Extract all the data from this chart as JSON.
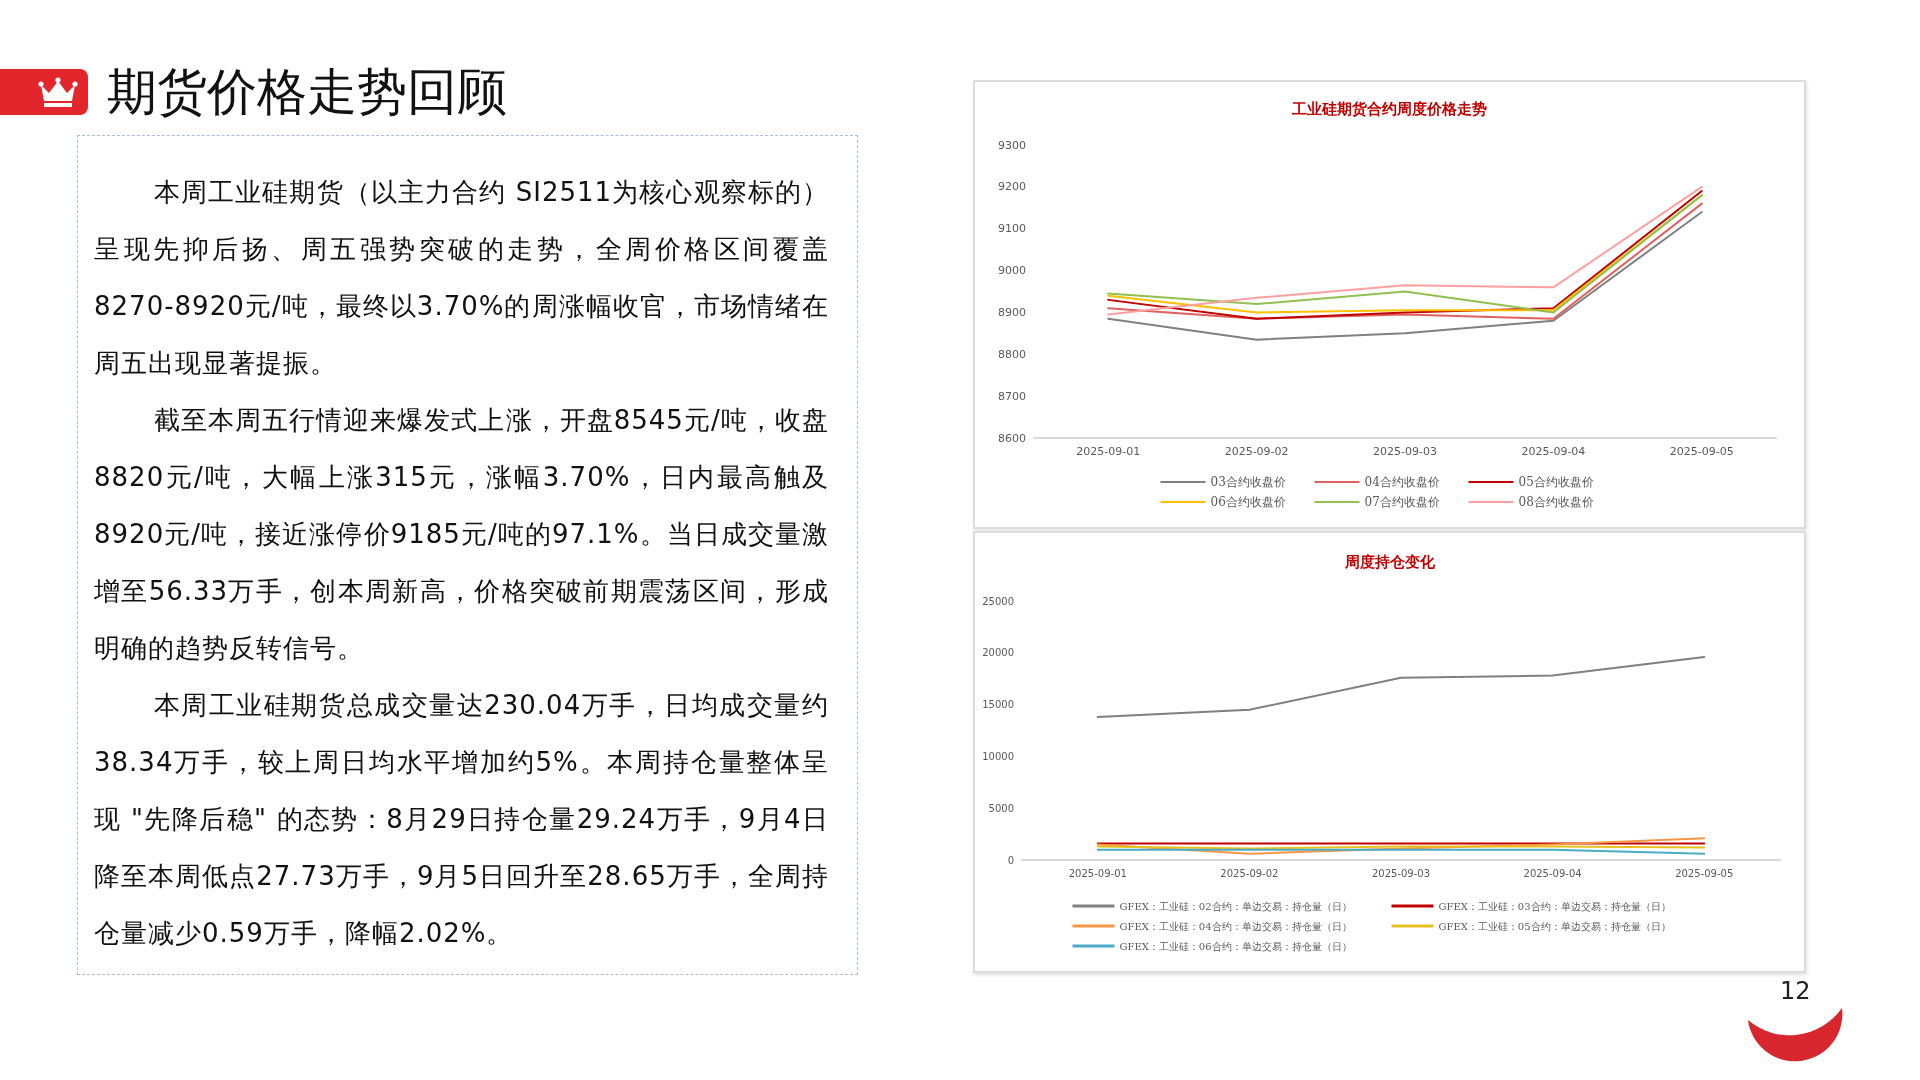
{
  "chart_data": [
    {
      "type": "other",
      "title": "期货价格走势回顾",
      "annotations": [
        "本周工业硅期货（以主力合约 SI2511为核心观察标的）呈现先抑后扬、周五强势突破的走势，全周价格区间覆盖 8270-8920元/吨，最终以3.70%的周涨幅收官，市场情绪在周五出现显著提振。",
        "截至本周五行情迎来爆发式上涨，开盘8545元/吨，收盘8820元/吨，大幅上涨315元，涨幅3.70%，日内最高触及8920元/吨，接近涨停价9185元/吨的97.1%。当日成交量激增至56.33万手，创本周新高，价格突破前期震荡区间，形成明确的趋势反转信号。",
        "本周工业硅期货总成交量达230.04万手，日均成交量约38.34万手，较上周日均水平增加约5%。本周持仓量整体呈现 \"先降后稳\" 的态势：8月29日持仓量29.24万手，9月4日降至本周低点27.73万手，9月5日回升至28.65万手，全周持仓量减少0.59万手，降幅2.02%。",
        "12"
      ]
    },
    {
      "type": "line",
      "title": "工业硅期货合约周度价格走势",
      "categories": [
        "2025-09-01",
        "2025-09-02",
        "2025-09-03",
        "2025-09-04",
        "2025-09-05"
      ],
      "series": [
        {
          "name": "03合约收盘价",
          "color": "#808080",
          "values": [
            8885,
            8835,
            8850,
            8880,
            9140
          ]
        },
        {
          "name": "04合约收盘价",
          "color": "#e06060",
          "values": [
            8910,
            8885,
            8895,
            8885,
            9160
          ]
        },
        {
          "name": "05合约收盘价",
          "color": "#c00000",
          "values": [
            8930,
            8885,
            8900,
            8910,
            9190
          ]
        },
        {
          "name": "06合约收盘价",
          "color": "#ffc000",
          "values": [
            8940,
            8900,
            8905,
            8905,
            9180
          ]
        },
        {
          "name": "07合约收盘价",
          "color": "#92c050",
          "values": [
            8945,
            8920,
            8950,
            8900,
            9180
          ]
        },
        {
          "name": "08合约收盘价",
          "color": "#ffa0a0",
          "values": [
            8895,
            8935,
            8965,
            8960,
            9200
          ]
        }
      ],
      "ylim": [
        8600,
        9300
      ],
      "yticks": [
        8600,
        8700,
        8800,
        8900,
        9000,
        9100,
        9200,
        9300
      ],
      "grid": false,
      "legend": "bottom",
      "marker": "none",
      "line_style": "solid"
    },
    {
      "type": "line",
      "title": "周度持仓变化",
      "categories": [
        "2025-09-01",
        "2025-09-02",
        "2025-09-03",
        "2025-09-04",
        "2025-09-05"
      ],
      "series": [
        {
          "name": "GFEX：工业硅：02合约：单边交易：持仓量（日）",
          "color": "#808080",
          "values": [
            13800,
            14500,
            17600,
            17800,
            19600
          ]
        },
        {
          "name": "GFEX：工业硅：03合约：单边交易：持仓量（日）",
          "color": "#c00000",
          "values": [
            1600,
            1600,
            1600,
            1600,
            1600
          ]
        },
        {
          "name": "GFEX：工业硅：04合约：单边交易：持仓量（日）",
          "color": "#f79646",
          "values": [
            1500,
            600,
            1100,
            1500,
            2100
          ]
        },
        {
          "name": "GFEX：工业硅：05合约：单边交易：持仓量（日）",
          "color": "#e8c020",
          "values": [
            1300,
            1100,
            1300,
            1300,
            1200
          ]
        },
        {
          "name": "GFEX：工业硅：06合约：单边交易：持仓量（日）",
          "color": "#4bacc6",
          "values": [
            1000,
            1000,
            1000,
            1000,
            600
          ]
        }
      ],
      "ylim": [
        0,
        25000
      ],
      "yticks": [
        0,
        5000,
        10000,
        15000,
        20000,
        25000
      ],
      "grid": false,
      "legend": "bottom",
      "marker": "none",
      "line_style": "solid"
    }
  ]
}
